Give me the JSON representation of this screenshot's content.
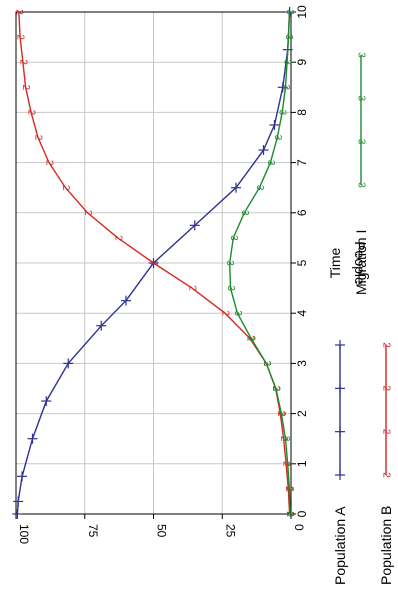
{
  "chart_data": {
    "type": "line",
    "orientation": "rotated 90 degrees counter-clockwise (x axis vertical, y axis horizontal)",
    "xlabel": "Time",
    "ylabel": "People",
    "xlim": [
      0,
      10
    ],
    "ylim": [
      0,
      100
    ],
    "x_ticks": [
      "0",
      "1",
      "2",
      "3",
      "4",
      "5",
      "6",
      "7",
      "8",
      "9",
      "10"
    ],
    "y_ticks": [
      "0",
      "25",
      "50",
      "75",
      "100"
    ],
    "grid": true,
    "legend_position": "bottom",
    "series": [
      {
        "name": "Population A",
        "color": "#2e3192",
        "marker": "plus",
        "marker_label": "",
        "x": [
          0.0,
          0.25,
          0.75,
          1.5,
          2.25,
          3.0,
          3.75,
          4.25,
          5.0,
          5.75,
          6.5,
          7.25,
          7.75,
          8.5,
          9.25,
          10.0
        ],
        "y": [
          99.5,
          99.2,
          97.8,
          94.0,
          89.0,
          81.0,
          69.0,
          60.0,
          50.0,
          35.0,
          20.0,
          10.0,
          6.0,
          3.0,
          1.2,
          0.5
        ]
      },
      {
        "name": "Population B",
        "color": "#d7281f",
        "marker": "digit",
        "marker_label": "2",
        "x": [
          0.0,
          0.5,
          1.0,
          1.5,
          2.0,
          2.5,
          3.0,
          3.5,
          4.0,
          4.5,
          5.0,
          5.5,
          6.0,
          6.5,
          7.0,
          7.5,
          8.0,
          8.5,
          9.0,
          9.5,
          10.0
        ],
        "y": [
          0.5,
          1.0,
          1.8,
          2.7,
          3.9,
          5.6,
          9.0,
          15.0,
          24.0,
          36.0,
          50.0,
          63.0,
          74.0,
          82.0,
          88.0,
          92.0,
          94.5,
          96.5,
          97.5,
          98.5,
          99.0
        ]
      },
      {
        "name": "Migration I",
        "color": "#1d8a2e",
        "marker": "digit",
        "marker_label": "3",
        "x": [
          0.0,
          0.5,
          1.0,
          1.5,
          2.0,
          2.5,
          3.0,
          3.5,
          4.0,
          4.5,
          5.0,
          5.5,
          6.0,
          6.5,
          7.0,
          7.5,
          8.0,
          8.5,
          9.0,
          9.5,
          10.0
        ],
        "y": [
          0.3,
          0.6,
          1.2,
          2.0,
          3.5,
          5.5,
          9.0,
          14.5,
          19.5,
          22.0,
          22.3,
          21.0,
          17.0,
          11.5,
          7.5,
          5.0,
          3.2,
          2.0,
          1.4,
          0.9,
          0.6
        ]
      }
    ],
    "legend": [
      {
        "label": "Population A",
        "color": "#2e3192",
        "marker": "plus",
        "marker_label": ""
      },
      {
        "label": "Population B",
        "color": "#d7281f",
        "marker": "digit",
        "marker_label": "2"
      },
      {
        "label": "Migration I",
        "color": "#1d8a2e",
        "marker": "digit",
        "marker_label": "3"
      }
    ]
  }
}
